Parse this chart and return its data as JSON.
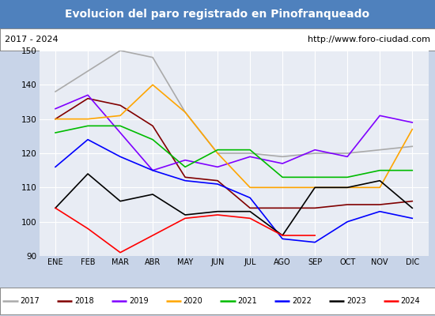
{
  "title": "Evolucion del paro registrado en Pinofranqueado",
  "subtitle_left": "2017 - 2024",
  "subtitle_right": "http://www.foro-ciudad.com",
  "title_bg": "#4f81bd",
  "title_color": "white",
  "xlabels": [
    "ENE",
    "FEB",
    "MAR",
    "ABR",
    "MAY",
    "JUN",
    "JUL",
    "AGO",
    "SEP",
    "OCT",
    "NOV",
    "DIC"
  ],
  "ylim": [
    90,
    150
  ],
  "yticks": [
    90,
    100,
    110,
    120,
    130,
    140,
    150
  ],
  "series": {
    "2017": {
      "color": "#aaaaaa",
      "data": [
        138,
        144,
        150,
        148,
        132,
        120,
        120,
        119,
        120,
        120,
        121,
        122
      ]
    },
    "2018": {
      "color": "#800000",
      "data": [
        130,
        136,
        134,
        128,
        113,
        112,
        104,
        104,
        104,
        105,
        105,
        106
      ]
    },
    "2019": {
      "color": "#7f00ff",
      "data": [
        133,
        137,
        126,
        115,
        118,
        116,
        119,
        117,
        121,
        119,
        131,
        129
      ]
    },
    "2020": {
      "color": "#ffa500",
      "data": [
        130,
        130,
        131,
        140,
        132,
        120,
        110,
        110,
        110,
        110,
        110,
        127
      ]
    },
    "2021": {
      "color": "#00bb00",
      "data": [
        126,
        128,
        128,
        124,
        116,
        121,
        121,
        113,
        113,
        113,
        115,
        115
      ]
    },
    "2022": {
      "color": "#0000ff",
      "data": [
        116,
        124,
        119,
        115,
        112,
        111,
        107,
        95,
        94,
        100,
        103,
        101
      ]
    },
    "2023": {
      "color": "#000000",
      "data": [
        104,
        114,
        106,
        108,
        102,
        103,
        103,
        96,
        110,
        110,
        112,
        104
      ]
    },
    "2024": {
      "color": "#ff0000",
      "data": [
        104,
        98,
        91,
        null,
        101,
        102,
        101,
        96,
        96,
        null,
        null,
        null
      ]
    }
  },
  "bg_color": "#c8d4e8",
  "plot_bg": "#e8ecf4",
  "grid_color": "white",
  "legend_bg": "white",
  "subtitle_bg": "white"
}
